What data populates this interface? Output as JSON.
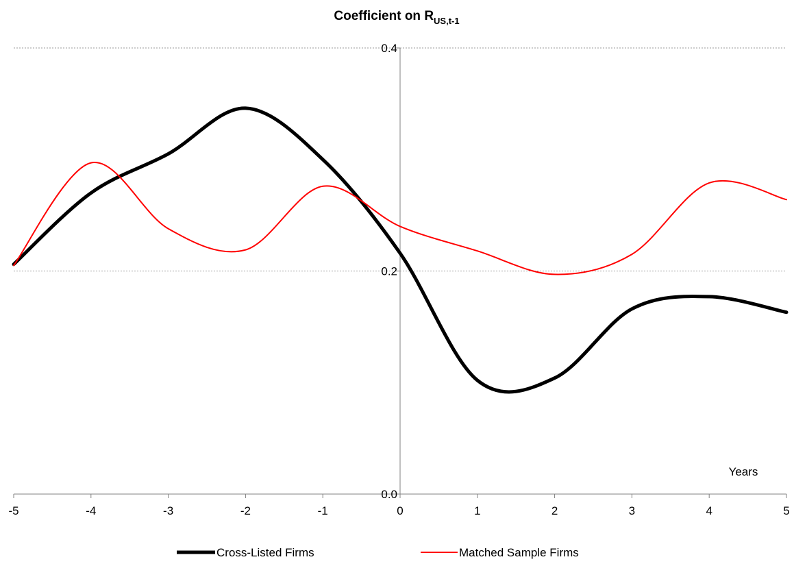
{
  "chart_data": {
    "type": "line",
    "title": "Coefficient on R",
    "title_subscript": "US,t-1",
    "xlabel": "Years",
    "ylabel": "",
    "x": [
      -5,
      -4,
      -3,
      -2,
      -1,
      0,
      1,
      2,
      3,
      4,
      5
    ],
    "xlim": [
      -5,
      5
    ],
    "ylim": [
      0.0,
      0.4
    ],
    "x_ticks": [
      "-5",
      "-4",
      "-3",
      "-2",
      "-1",
      "0",
      "1",
      "2",
      "3",
      "4",
      "5"
    ],
    "y_ticks": [
      "0.0",
      "0.2",
      "0.4"
    ],
    "grid": "horizontal dotted",
    "legend_position": "bottom",
    "series": [
      {
        "name": "Cross-Listed Firms",
        "color": "#000000",
        "values": [
          0.206,
          0.27,
          0.305,
          0.346,
          0.3,
          0.216,
          0.102,
          0.104,
          0.166,
          0.177,
          0.163
        ]
      },
      {
        "name": "Matched Sample Firms",
        "color": "#ff0000",
        "values": [
          0.205,
          0.297,
          0.238,
          0.219,
          0.276,
          0.24,
          0.218,
          0.197,
          0.215,
          0.279,
          0.264
        ]
      }
    ]
  }
}
